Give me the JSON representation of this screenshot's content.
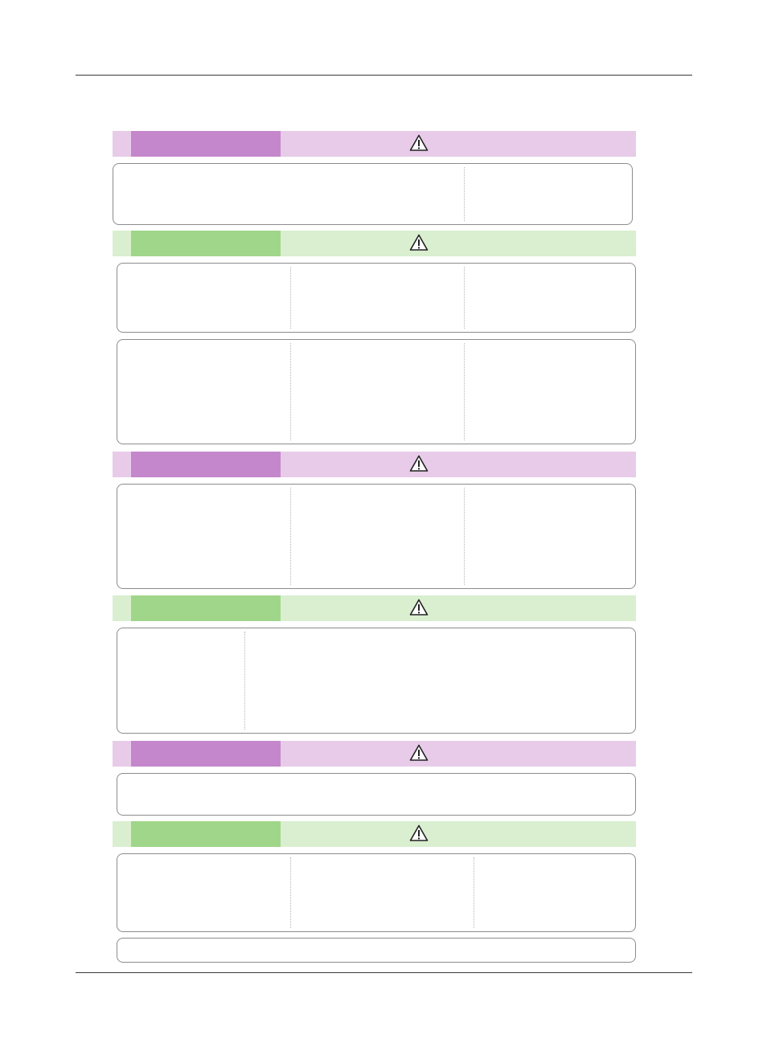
{
  "colors": {
    "purple_light": "#e7cbe8",
    "purple_dark": "#c487cb",
    "green_light": "#d9efd0",
    "green_dark": "#a0d68a",
    "rule": "#3a3a3a",
    "box_border": "#8c8c8c"
  },
  "icons": {
    "band_icon": "warning-triangle-icon"
  },
  "sections": [
    {
      "color": "purple",
      "icon": "warning-triangle-icon",
      "boxes": [
        {
          "columns": 2
        }
      ]
    },
    {
      "color": "green",
      "icon": "warning-triangle-icon",
      "boxes": [
        {
          "columns": 3
        },
        {
          "columns": 3
        }
      ]
    },
    {
      "color": "purple",
      "icon": "warning-triangle-icon",
      "boxes": [
        {
          "columns": 3
        }
      ]
    },
    {
      "color": "green",
      "icon": "warning-triangle-icon",
      "boxes": [
        {
          "columns": 2
        }
      ]
    },
    {
      "color": "purple",
      "icon": "warning-triangle-icon",
      "boxes": [
        {
          "columns": 1
        }
      ]
    },
    {
      "color": "green",
      "icon": "warning-triangle-icon",
      "boxes": [
        {
          "columns": 3
        },
        {
          "columns": 1
        }
      ]
    }
  ]
}
